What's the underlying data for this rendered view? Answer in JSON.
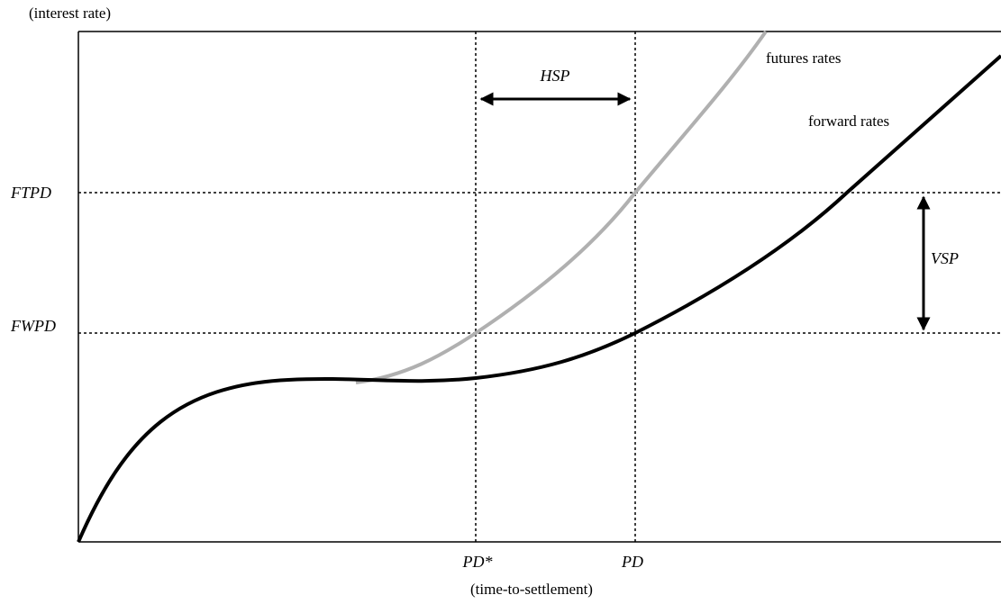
{
  "axes": {
    "y_label": "(interest rate)",
    "x_label": "(time-to-settlement)"
  },
  "levels": {
    "futures_at_pd": "FTPD",
    "forward_at_pd": "FWPD"
  },
  "dates": {
    "pd_star": "PD*",
    "pd": "PD"
  },
  "spreads": {
    "horizontal": "HSP",
    "vertical": "VSP"
  },
  "curves": {
    "futures": "futures rates",
    "forward": "forward rates"
  }
}
